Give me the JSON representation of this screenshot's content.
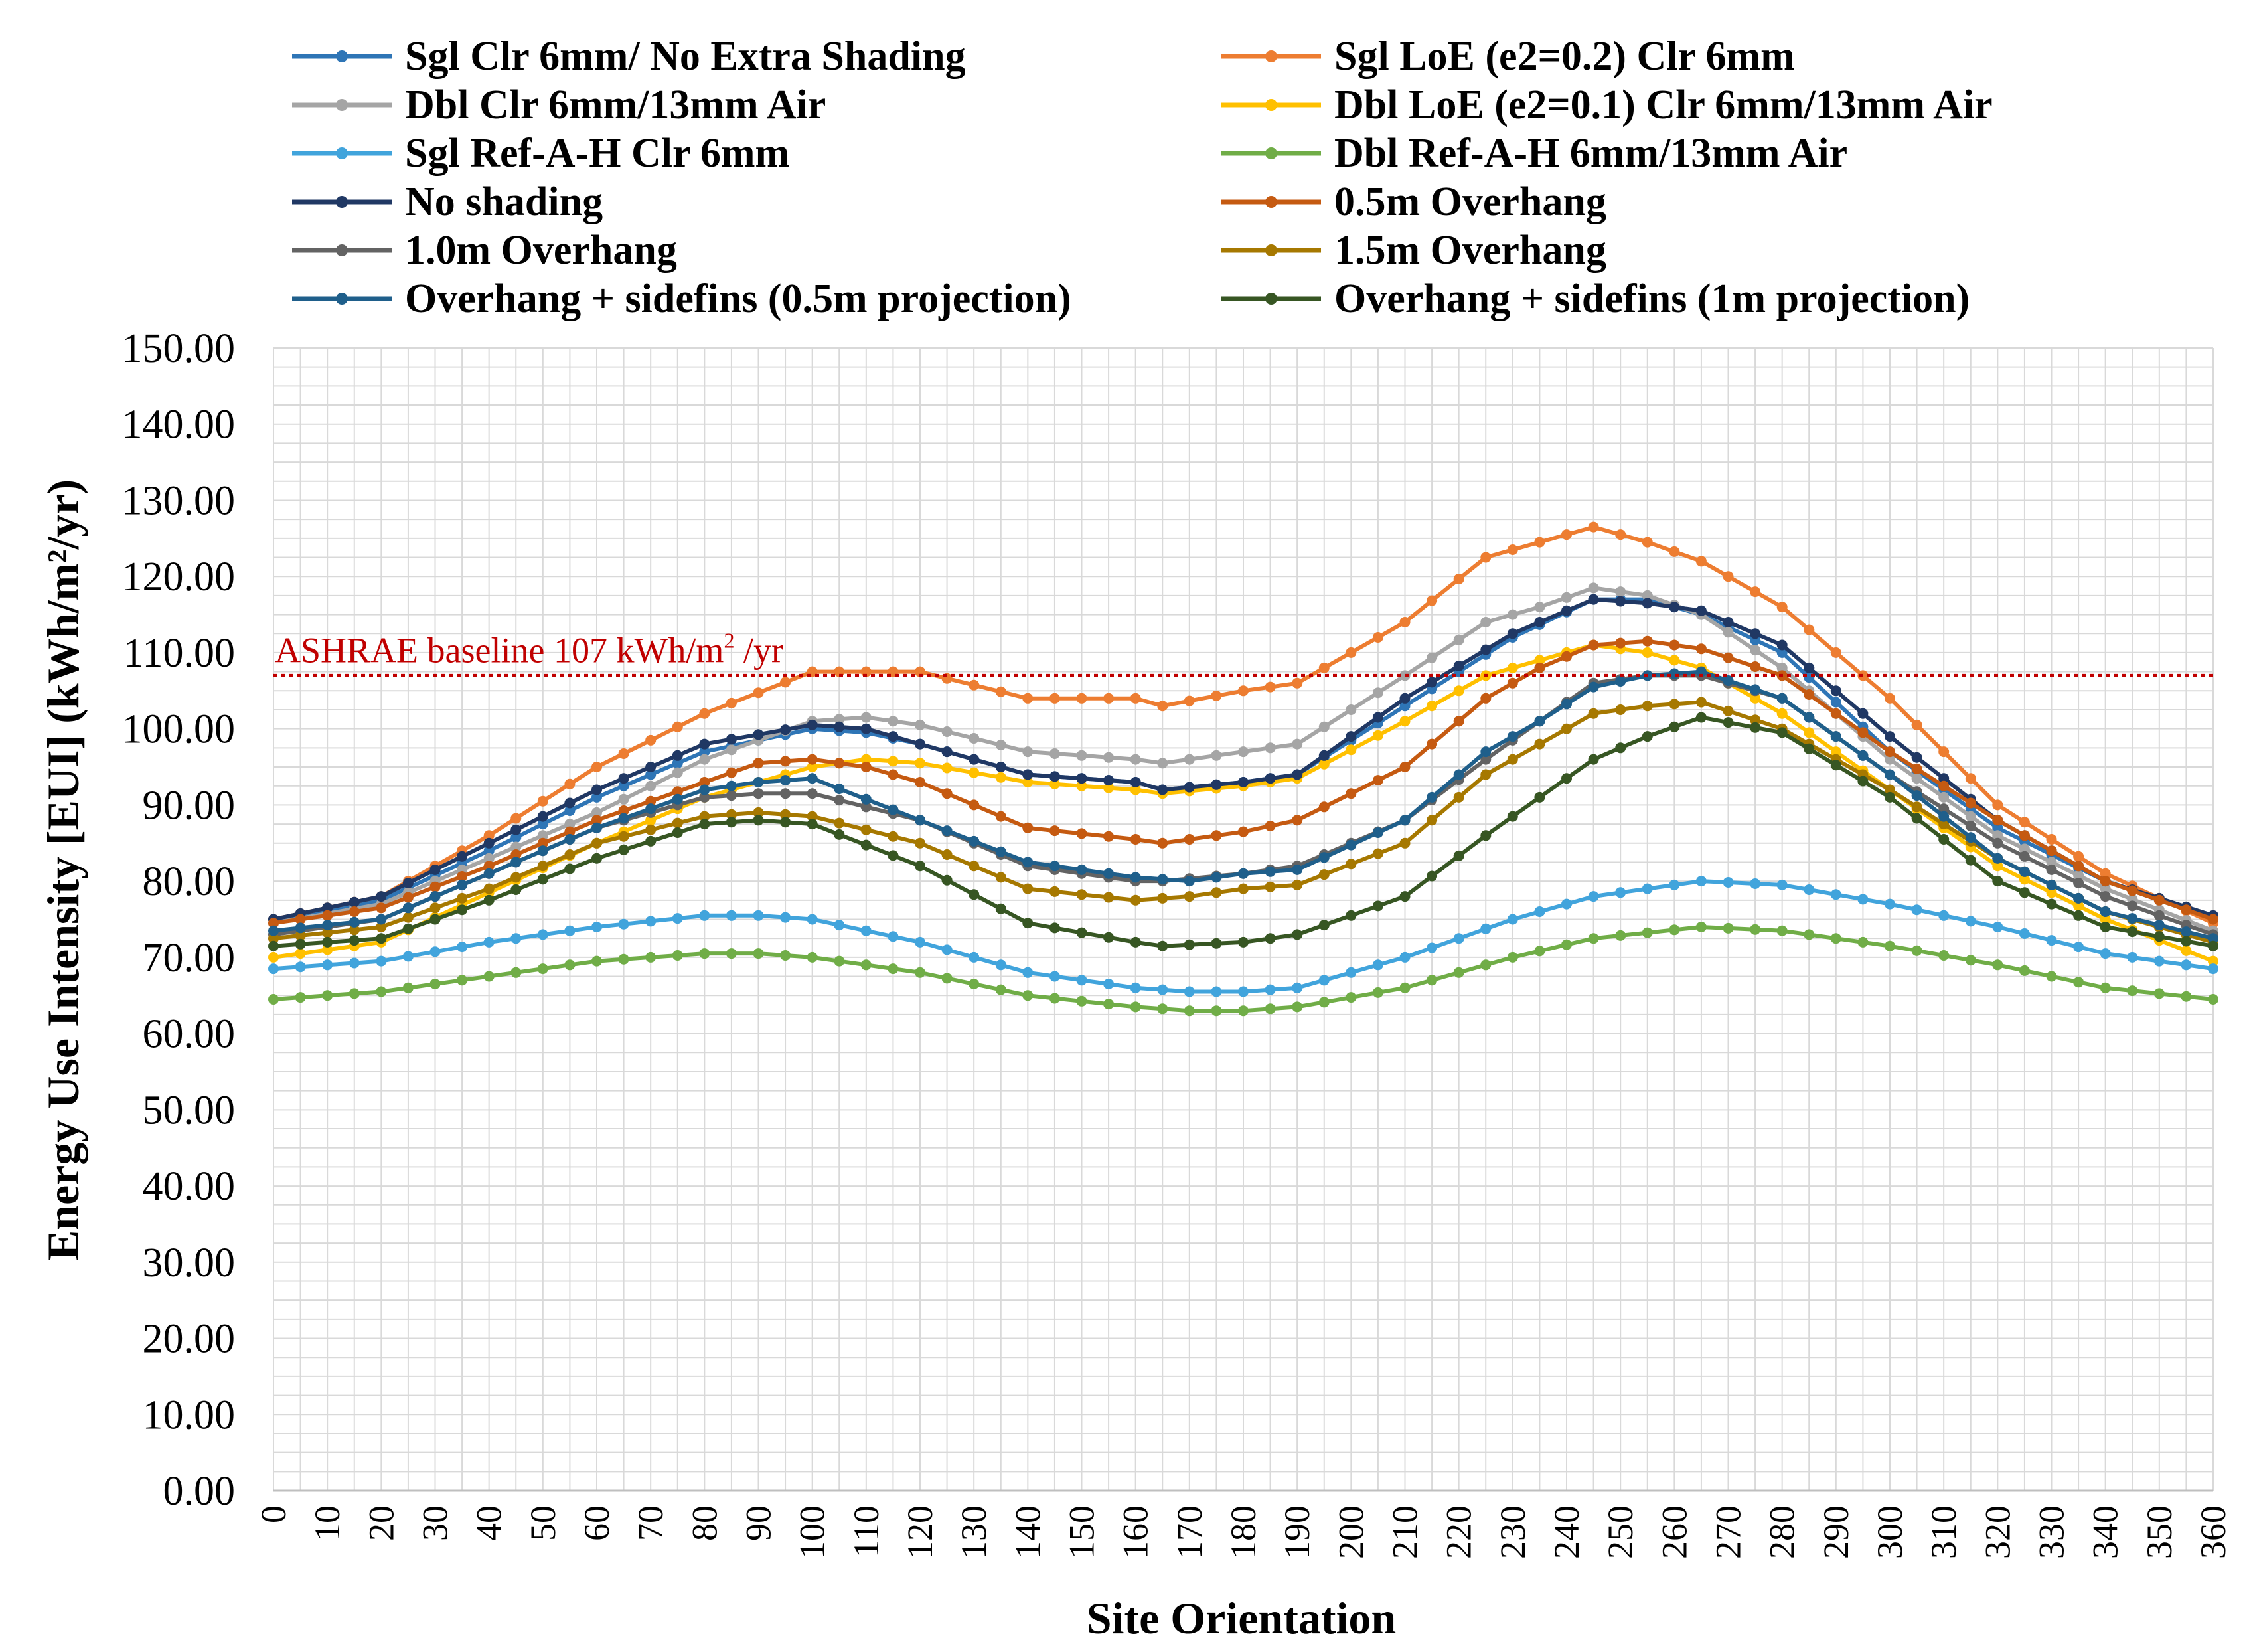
{
  "chart_data": {
    "type": "line",
    "xlabel": "Site Orientation",
    "ylabel": "Energy Use Intensity [EUI] (kWh/m²/yr)",
    "xlim": [
      0,
      360
    ],
    "ylim": [
      0,
      150
    ],
    "x_step": 5,
    "x_tick_step": 10,
    "y_tick_step": 10,
    "y_tick_labels": [
      "0.00",
      "10.00",
      "20.00",
      "30.00",
      "40.00",
      "50.00",
      "60.00",
      "70.00",
      "80.00",
      "90.00",
      "100.00",
      "110.00",
      "120.00",
      "130.00",
      "140.00",
      "150.00"
    ],
    "x_tick_labels": [
      "0",
      "10",
      "20",
      "30",
      "40",
      "50",
      "60",
      "70",
      "80",
      "90",
      "100",
      "110",
      "120",
      "130",
      "140",
      "150",
      "160",
      "170",
      "180",
      "190",
      "200",
      "210",
      "220",
      "230",
      "240",
      "250",
      "260",
      "270",
      "280",
      "290",
      "300",
      "310",
      "320",
      "330",
      "340",
      "350",
      "360"
    ],
    "grid": true,
    "legend_position": "top",
    "baseline": {
      "value": 107,
      "label_prefix": "ASHRAE baseline 107  kWh/m",
      "label_sup": "2",
      "label_suffix": " /yr",
      "color": "#C00000"
    },
    "series": [
      {
        "name": "Sgl Clr 6mm/ No Extra Shading",
        "color": "#2E75B6",
        "anchors": [
          [
            0,
            75
          ],
          [
            20,
            77.5
          ],
          [
            40,
            84
          ],
          [
            60,
            91
          ],
          [
            80,
            97
          ],
          [
            100,
            100
          ],
          [
            110,
            99.5
          ],
          [
            120,
            98
          ],
          [
            140,
            94
          ],
          [
            160,
            93
          ],
          [
            165,
            92
          ],
          [
            180,
            93
          ],
          [
            190,
            94
          ],
          [
            210,
            103
          ],
          [
            230,
            112
          ],
          [
            245,
            117
          ],
          [
            255,
            117
          ],
          [
            265,
            115
          ],
          [
            280,
            110
          ],
          [
            300,
            97
          ],
          [
            320,
            87
          ],
          [
            340,
            80
          ],
          [
            360,
            75
          ]
        ]
      },
      {
        "name": "Sgl LoE (e2=0.2) Clr 6mm",
        "color": "#ED7D31",
        "anchors": [
          [
            0,
            75
          ],
          [
            20,
            78
          ],
          [
            40,
            86
          ],
          [
            60,
            95
          ],
          [
            80,
            102
          ],
          [
            100,
            107.5
          ],
          [
            110,
            107.5
          ],
          [
            120,
            107.5
          ],
          [
            140,
            104
          ],
          [
            160,
            104
          ],
          [
            165,
            103
          ],
          [
            180,
            105
          ],
          [
            190,
            106
          ],
          [
            210,
            114
          ],
          [
            225,
            122.5
          ],
          [
            235,
            124.5
          ],
          [
            245,
            126.5
          ],
          [
            255,
            124.5
          ],
          [
            265,
            122
          ],
          [
            280,
            116
          ],
          [
            300,
            104
          ],
          [
            320,
            90
          ],
          [
            340,
            81
          ],
          [
            360,
            74.5
          ]
        ]
      },
      {
        "name": "Dbl Clr 6mm/13mm Air",
        "color": "#A5A5A5",
        "anchors": [
          [
            0,
            74.5
          ],
          [
            20,
            77
          ],
          [
            40,
            83
          ],
          [
            60,
            89
          ],
          [
            80,
            96
          ],
          [
            100,
            101
          ],
          [
            110,
            101.5
          ],
          [
            120,
            100.5
          ],
          [
            140,
            97
          ],
          [
            160,
            96
          ],
          [
            165,
            95.5
          ],
          [
            180,
            97
          ],
          [
            190,
            98
          ],
          [
            210,
            107
          ],
          [
            225,
            114
          ],
          [
            235,
            116
          ],
          [
            245,
            118.5
          ],
          [
            255,
            117.5
          ],
          [
            265,
            115
          ],
          [
            280,
            108
          ],
          [
            300,
            96
          ],
          [
            320,
            86
          ],
          [
            340,
            79
          ],
          [
            360,
            73.5
          ]
        ]
      },
      {
        "name": "Dbl LoE (e2=0.1) Clr 6mm/13mm Air",
        "color": "#FFC000",
        "anchors": [
          [
            0,
            70
          ],
          [
            20,
            72
          ],
          [
            40,
            78.5
          ],
          [
            60,
            85
          ],
          [
            80,
            91
          ],
          [
            100,
            95
          ],
          [
            110,
            96
          ],
          [
            120,
            95.5
          ],
          [
            140,
            93
          ],
          [
            160,
            92
          ],
          [
            165,
            91.5
          ],
          [
            180,
            92.5
          ],
          [
            190,
            93.5
          ],
          [
            210,
            101
          ],
          [
            225,
            107
          ],
          [
            235,
            109
          ],
          [
            245,
            111
          ],
          [
            255,
            110
          ],
          [
            265,
            108
          ],
          [
            280,
            102
          ],
          [
            300,
            92
          ],
          [
            320,
            82
          ],
          [
            340,
            75
          ],
          [
            360,
            69.5
          ]
        ]
      },
      {
        "name": "Sgl Ref-A-H Clr 6mm",
        "color": "#41A4DC",
        "anchors": [
          [
            0,
            68.5
          ],
          [
            20,
            69.5
          ],
          [
            40,
            72
          ],
          [
            60,
            74
          ],
          [
            80,
            75.5
          ],
          [
            90,
            75.5
          ],
          [
            100,
            75
          ],
          [
            120,
            72
          ],
          [
            140,
            68
          ],
          [
            160,
            66
          ],
          [
            170,
            65.5
          ],
          [
            180,
            65.5
          ],
          [
            190,
            66
          ],
          [
            210,
            70
          ],
          [
            230,
            75
          ],
          [
            245,
            78
          ],
          [
            265,
            80
          ],
          [
            280,
            79.5
          ],
          [
            300,
            77
          ],
          [
            320,
            74
          ],
          [
            340,
            70.5
          ],
          [
            360,
            68.5
          ]
        ]
      },
      {
        "name": "Dbl Ref-A-H 6mm/13mm Air",
        "color": "#70AD47",
        "anchors": [
          [
            0,
            64.5
          ],
          [
            20,
            65.5
          ],
          [
            40,
            67.5
          ],
          [
            60,
            69.5
          ],
          [
            80,
            70.5
          ],
          [
            90,
            70.5
          ],
          [
            100,
            70
          ],
          [
            120,
            68
          ],
          [
            140,
            65
          ],
          [
            160,
            63.5
          ],
          [
            170,
            63
          ],
          [
            180,
            63
          ],
          [
            190,
            63.5
          ],
          [
            210,
            66
          ],
          [
            230,
            70
          ],
          [
            245,
            72.5
          ],
          [
            265,
            74
          ],
          [
            280,
            73.5
          ],
          [
            300,
            71.5
          ],
          [
            320,
            69
          ],
          [
            340,
            66
          ],
          [
            360,
            64.5
          ]
        ]
      },
      {
        "name": "No shading",
        "color": "#203864",
        "anchors": [
          [
            0,
            75
          ],
          [
            20,
            78
          ],
          [
            40,
            85
          ],
          [
            60,
            92
          ],
          [
            80,
            98
          ],
          [
            100,
            100.5
          ],
          [
            110,
            100
          ],
          [
            120,
            98
          ],
          [
            140,
            94
          ],
          [
            160,
            93
          ],
          [
            165,
            92
          ],
          [
            180,
            93
          ],
          [
            190,
            94
          ],
          [
            210,
            104
          ],
          [
            230,
            112.5
          ],
          [
            245,
            117
          ],
          [
            255,
            116.5
          ],
          [
            265,
            115.5
          ],
          [
            280,
            111
          ],
          [
            300,
            99
          ],
          [
            320,
            88
          ],
          [
            340,
            80
          ],
          [
            360,
            75.5
          ]
        ]
      },
      {
        "name": "0.5m Overhang",
        "color": "#C55A11",
        "anchors": [
          [
            0,
            74.5
          ],
          [
            20,
            76.5
          ],
          [
            40,
            82
          ],
          [
            60,
            88
          ],
          [
            80,
            93
          ],
          [
            90,
            95.5
          ],
          [
            100,
            96
          ],
          [
            110,
            95
          ],
          [
            120,
            93
          ],
          [
            140,
            87
          ],
          [
            160,
            85.5
          ],
          [
            165,
            85
          ],
          [
            180,
            86.5
          ],
          [
            190,
            88
          ],
          [
            210,
            95
          ],
          [
            225,
            104
          ],
          [
            235,
            108
          ],
          [
            245,
            111
          ],
          [
            255,
            111.5
          ],
          [
            265,
            110.5
          ],
          [
            280,
            107
          ],
          [
            300,
            97
          ],
          [
            320,
            88
          ],
          [
            340,
            80
          ],
          [
            360,
            75
          ]
        ]
      },
      {
        "name": "1.0m Overhang",
        "color": "#636363",
        "anchors": [
          [
            0,
            73
          ],
          [
            20,
            75
          ],
          [
            40,
            81
          ],
          [
            60,
            87
          ],
          [
            80,
            91
          ],
          [
            90,
            91.5
          ],
          [
            100,
            91.5
          ],
          [
            120,
            88
          ],
          [
            140,
            82
          ],
          [
            160,
            80
          ],
          [
            165,
            80
          ],
          [
            180,
            81
          ],
          [
            190,
            82
          ],
          [
            210,
            88
          ],
          [
            225,
            96
          ],
          [
            235,
            101
          ],
          [
            245,
            106
          ],
          [
            255,
            107
          ],
          [
            265,
            107
          ],
          [
            280,
            104
          ],
          [
            300,
            94
          ],
          [
            320,
            85
          ],
          [
            340,
            78
          ],
          [
            360,
            73
          ]
        ]
      },
      {
        "name": "1.5m Overhang",
        "color": "#A67800",
        "anchors": [
          [
            0,
            72.5
          ],
          [
            20,
            74
          ],
          [
            40,
            79
          ],
          [
            60,
            85
          ],
          [
            80,
            88.5
          ],
          [
            90,
            89
          ],
          [
            100,
            88.5
          ],
          [
            120,
            85
          ],
          [
            140,
            79
          ],
          [
            160,
            77.5
          ],
          [
            170,
            78
          ],
          [
            180,
            79
          ],
          [
            190,
            79.5
          ],
          [
            210,
            85
          ],
          [
            225,
            94
          ],
          [
            235,
            98
          ],
          [
            245,
            102
          ],
          [
            255,
            103
          ],
          [
            265,
            103.5
          ],
          [
            280,
            100
          ],
          [
            300,
            92
          ],
          [
            320,
            83
          ],
          [
            340,
            76
          ],
          [
            360,
            72
          ]
        ]
      },
      {
        "name": "Overhang + sidefins (0.5m projection)",
        "color": "#1F5F8B",
        "anchors": [
          [
            0,
            73.5
          ],
          [
            20,
            75
          ],
          [
            40,
            81
          ],
          [
            60,
            87
          ],
          [
            80,
            92
          ],
          [
            90,
            93
          ],
          [
            100,
            93.5
          ],
          [
            120,
            88
          ],
          [
            140,
            82.5
          ],
          [
            160,
            80.5
          ],
          [
            170,
            80
          ],
          [
            180,
            81
          ],
          [
            190,
            81.5
          ],
          [
            210,
            88
          ],
          [
            225,
            97
          ],
          [
            235,
            101
          ],
          [
            245,
            105.5
          ],
          [
            255,
            107
          ],
          [
            265,
            107.5
          ],
          [
            280,
            104
          ],
          [
            300,
            94
          ],
          [
            320,
            83
          ],
          [
            340,
            76
          ],
          [
            360,
            72.5
          ]
        ]
      },
      {
        "name": "Overhang + sidefins (1m projection)",
        "color": "#375623",
        "anchors": [
          [
            0,
            71.5
          ],
          [
            20,
            72.5
          ],
          [
            40,
            77.5
          ],
          [
            60,
            83
          ],
          [
            80,
            87.5
          ],
          [
            90,
            88
          ],
          [
            100,
            87.5
          ],
          [
            120,
            82
          ],
          [
            140,
            74.5
          ],
          [
            160,
            72
          ],
          [
            165,
            71.5
          ],
          [
            180,
            72
          ],
          [
            190,
            73
          ],
          [
            210,
            78
          ],
          [
            225,
            86
          ],
          [
            235,
            91
          ],
          [
            245,
            96
          ],
          [
            255,
            99
          ],
          [
            265,
            101.5
          ],
          [
            280,
            99.5
          ],
          [
            300,
            91
          ],
          [
            320,
            80
          ],
          [
            340,
            74
          ],
          [
            360,
            71.5
          ]
        ]
      }
    ]
  }
}
